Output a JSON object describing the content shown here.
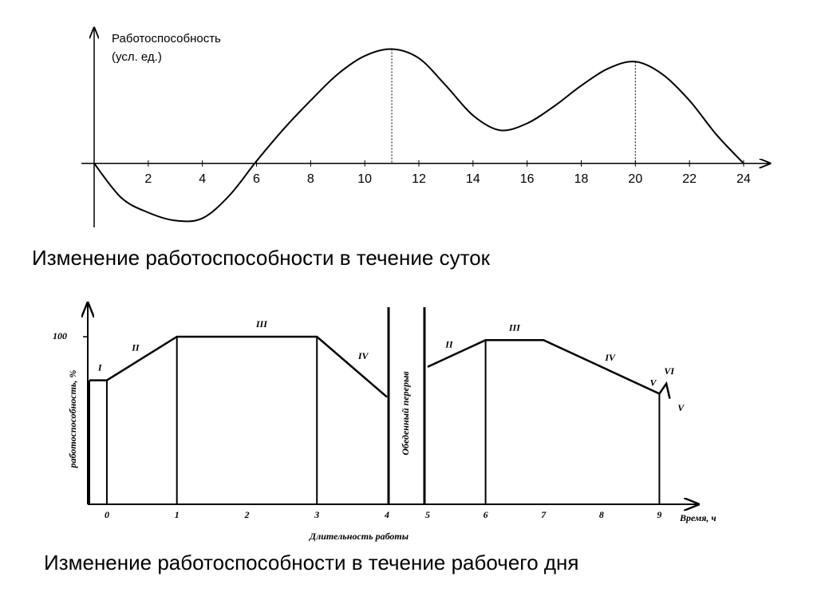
{
  "chart_data": [
    {
      "type": "line",
      "ylabel": [
        "Работоспособность",
        "(усл. ед.)"
      ],
      "x": [
        0,
        1,
        2,
        3,
        4,
        5,
        6,
        7,
        8,
        9,
        10,
        11,
        12,
        13,
        14,
        15,
        16,
        17,
        18,
        19,
        20,
        21,
        22,
        23,
        24
      ],
      "values": [
        0,
        -0.3,
        -0.43,
        -0.5,
        -0.48,
        -0.28,
        0.02,
        0.3,
        0.55,
        0.78,
        0.94,
        1.0,
        0.92,
        0.68,
        0.42,
        0.29,
        0.35,
        0.5,
        0.68,
        0.83,
        0.89,
        0.78,
        0.55,
        0.25,
        0
      ],
      "color": "#000000",
      "xlim": [
        0,
        24
      ],
      "ylim": [
        -0.56,
        1.15
      ],
      "xticks": [
        2,
        4,
        6,
        8,
        10,
        12,
        14,
        16,
        18,
        20,
        22,
        24
      ],
      "reference_lines": [
        11,
        20
      ],
      "caption": "Изменение работоспособности в течение суток"
    },
    {
      "type": "segments",
      "ylabel": "работоспособность, %",
      "xlabel": "Время,  ч",
      "x_title": "Длительность      работы",
      "break_label": "Обеденный перерыв",
      "x_break": [
        4,
        5
      ],
      "xlim": [
        -0.25,
        9.6
      ],
      "ylim": [
        0,
        100
      ],
      "yticks": [
        100
      ],
      "xticks": [
        0,
        1,
        2,
        3,
        4,
        5,
        6,
        7,
        8,
        9
      ],
      "dividers": [
        -0.25,
        0,
        1,
        3,
        6,
        9
      ],
      "color": "#000000",
      "series": [
        {
          "x": [
            -0.25,
            0,
            1,
            3,
            4
          ],
          "values": [
            74,
            74,
            100,
            100,
            64
          ]
        },
        {
          "x": [
            5,
            6,
            7,
            9,
            9.12,
            9.18
          ],
          "values": [
            82,
            98,
            98,
            66,
            72,
            63
          ]
        }
      ],
      "annotations": [
        {
          "text": "I",
          "x": -0.1,
          "y": 81
        },
        {
          "text": "II",
          "x": 0.41,
          "y": 93
        },
        {
          "text": "III",
          "x": 2.21,
          "y": 107
        },
        {
          "text": "IV",
          "x": 3.66,
          "y": 88
        },
        {
          "text": "II",
          "x": 5.37,
          "y": 95
        },
        {
          "text": "III",
          "x": 6.5,
          "y": 105
        },
        {
          "text": "IV",
          "x": 8.15,
          "y": 87
        },
        {
          "text": "V",
          "x": 8.89,
          "y": 72
        },
        {
          "text": "VI",
          "x": 9.17,
          "y": 79
        },
        {
          "text": "V",
          "x": 9.37,
          "y": 57
        }
      ],
      "caption": "Изменение работоспособности в течение рабочего дня"
    }
  ]
}
